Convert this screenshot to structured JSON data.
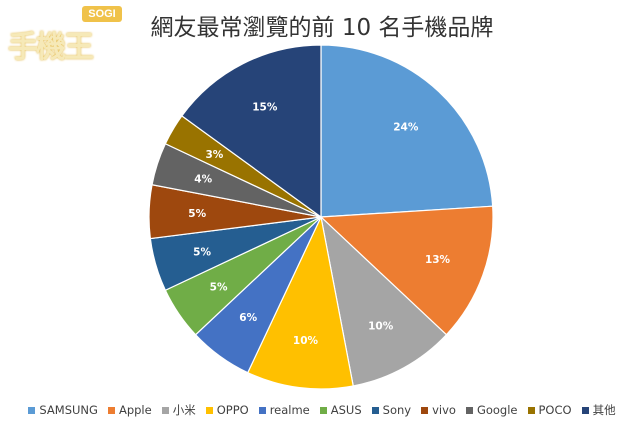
{
  "logo": {
    "badge": "SOGI",
    "text": "手機王"
  },
  "chart_data": {
    "type": "pie",
    "title": "網友最常瀏覽的前 10 名手機品牌",
    "start_angle_deg": 0,
    "direction": "clockwise",
    "legend_position": "bottom",
    "slices": [
      {
        "name": "SAMSUNG",
        "value": 24,
        "label": "24%",
        "color": "#5b9bd5"
      },
      {
        "name": "Apple",
        "value": 13,
        "label": "13%",
        "color": "#ed7d31"
      },
      {
        "name": "小米",
        "value": 10,
        "label": "10%",
        "color": "#a5a5a5"
      },
      {
        "name": "OPPO",
        "value": 10,
        "label": "10%",
        "color": "#ffc000"
      },
      {
        "name": "realme",
        "value": 6,
        "label": "6%",
        "color": "#4472c4"
      },
      {
        "name": "ASUS",
        "value": 5,
        "label": "5%",
        "color": "#70ad47"
      },
      {
        "name": "Sony",
        "value": 5,
        "label": "5%",
        "color": "#255e91"
      },
      {
        "name": "vivo",
        "value": 5,
        "label": "5%",
        "color": "#9e480e"
      },
      {
        "name": "Google",
        "value": 4,
        "label": "4%",
        "color": "#636363"
      },
      {
        "name": "POCO",
        "value": 3,
        "label": "3%",
        "color": "#997300"
      },
      {
        "name": "其他",
        "value": 15,
        "label": "15%",
        "color": "#264478"
      }
    ]
  }
}
